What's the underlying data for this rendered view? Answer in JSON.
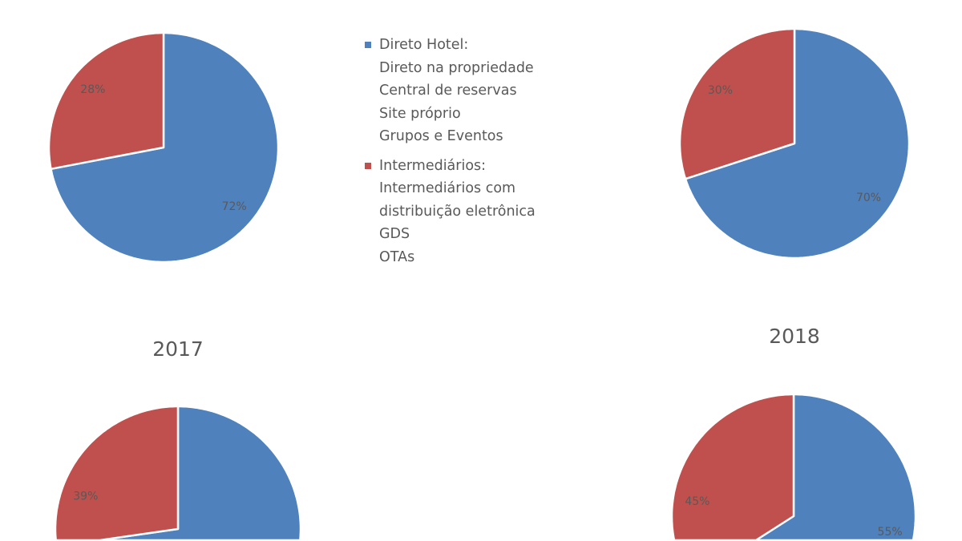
{
  "chart_data": [
    {
      "type": "pie",
      "title": "",
      "categories": [
        "Direto Hotel",
        "Intermediários"
      ],
      "values": [
        72,
        28
      ],
      "labels": [
        "72%",
        "28%"
      ]
    },
    {
      "type": "pie",
      "title": "",
      "categories": [
        "Direto Hotel",
        "Intermediários"
      ],
      "values": [
        70,
        30
      ],
      "labels": [
        "70%",
        "30%"
      ]
    },
    {
      "type": "pie",
      "title": "2017",
      "categories": [
        "Direto Hotel",
        "Intermediários"
      ],
      "values": [
        61,
        39
      ],
      "labels": [
        "",
        "39%"
      ]
    },
    {
      "type": "pie",
      "title": "2018",
      "categories": [
        "Direto Hotel",
        "Intermediários"
      ],
      "values": [
        55,
        45
      ],
      "labels": [
        "55%",
        "45%"
      ]
    }
  ],
  "colors": {
    "direto": "#4F81BD",
    "intermediarios": "#C0504D",
    "label": "#595959"
  },
  "legend": [
    {
      "name": "Direto Hotel:",
      "color": "#4F81BD",
      "items": [
        "Direto na propriedade",
        "Central de reservas",
        "Site próprio",
        "Grupos e Eventos"
      ]
    },
    {
      "name": "Intermediários:",
      "color": "#C0504D",
      "items": [
        "Intermediários com",
        "distribuição eletrônica",
        "GDS",
        "OTAs"
      ]
    }
  ]
}
